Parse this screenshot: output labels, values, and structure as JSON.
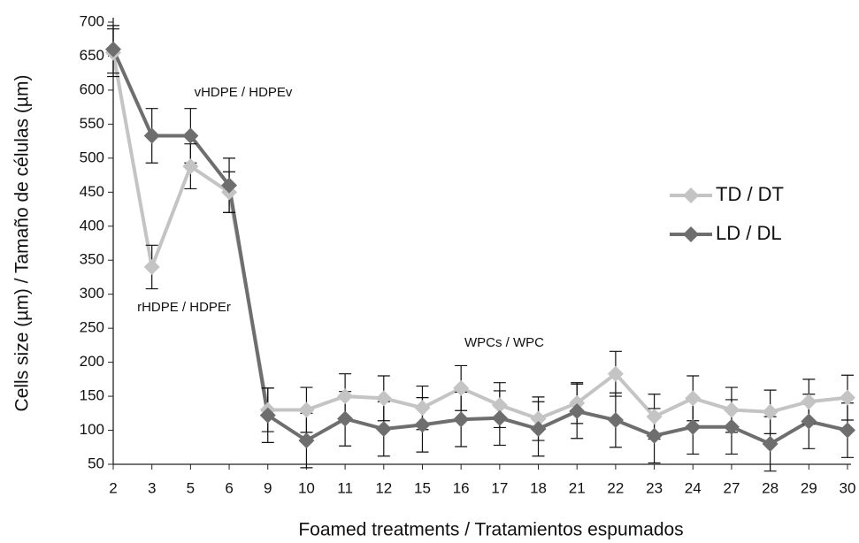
{
  "chart_data": {
    "type": "line",
    "x_label": "Foamed treatments / Tratamientos espumados",
    "y_label": "Cells size (µm) / Tamaño de células (µm)",
    "categories": [
      "2",
      "3",
      "5",
      "6",
      "9",
      "10",
      "11",
      "12",
      "15",
      "16",
      "17",
      "18",
      "21",
      "22",
      "23",
      "24",
      "27",
      "28",
      "29",
      "30"
    ],
    "series": [
      {
        "name": "TD / DT",
        "color": "#c4c4c4",
        "values": [
          655,
          340,
          488,
          450,
          130,
          130,
          150,
          147,
          133,
          162,
          137,
          117,
          140,
          183,
          120,
          147,
          130,
          127,
          142,
          148
        ],
        "errors": [
          35,
          32,
          33,
          30,
          32,
          33,
          33,
          33,
          32,
          33,
          33,
          32,
          30,
          33,
          33,
          33,
          33,
          32,
          33,
          33
        ]
      },
      {
        "name": "LD / DL",
        "color": "#6e6e6e",
        "values": [
          660,
          533,
          533,
          460,
          122,
          85,
          117,
          102,
          108,
          116,
          118,
          102,
          128,
          115,
          92,
          105,
          105,
          80,
          113,
          100
        ],
        "errors": [
          35,
          40,
          40,
          40,
          40,
          40,
          40,
          40,
          40,
          40,
          40,
          40,
          40,
          40,
          40,
          40,
          40,
          40,
          40,
          40
        ]
      }
    ],
    "annotations": [
      "vHDPE / HDPEv",
      "rHDPE / HDPEr",
      "WPCs / WPC"
    ],
    "ylim": [
      50,
      700
    ],
    "yticks": [
      50,
      100,
      150,
      200,
      250,
      300,
      350,
      400,
      450,
      500,
      550,
      600,
      650,
      700
    ],
    "grid": false,
    "legend": "right"
  }
}
